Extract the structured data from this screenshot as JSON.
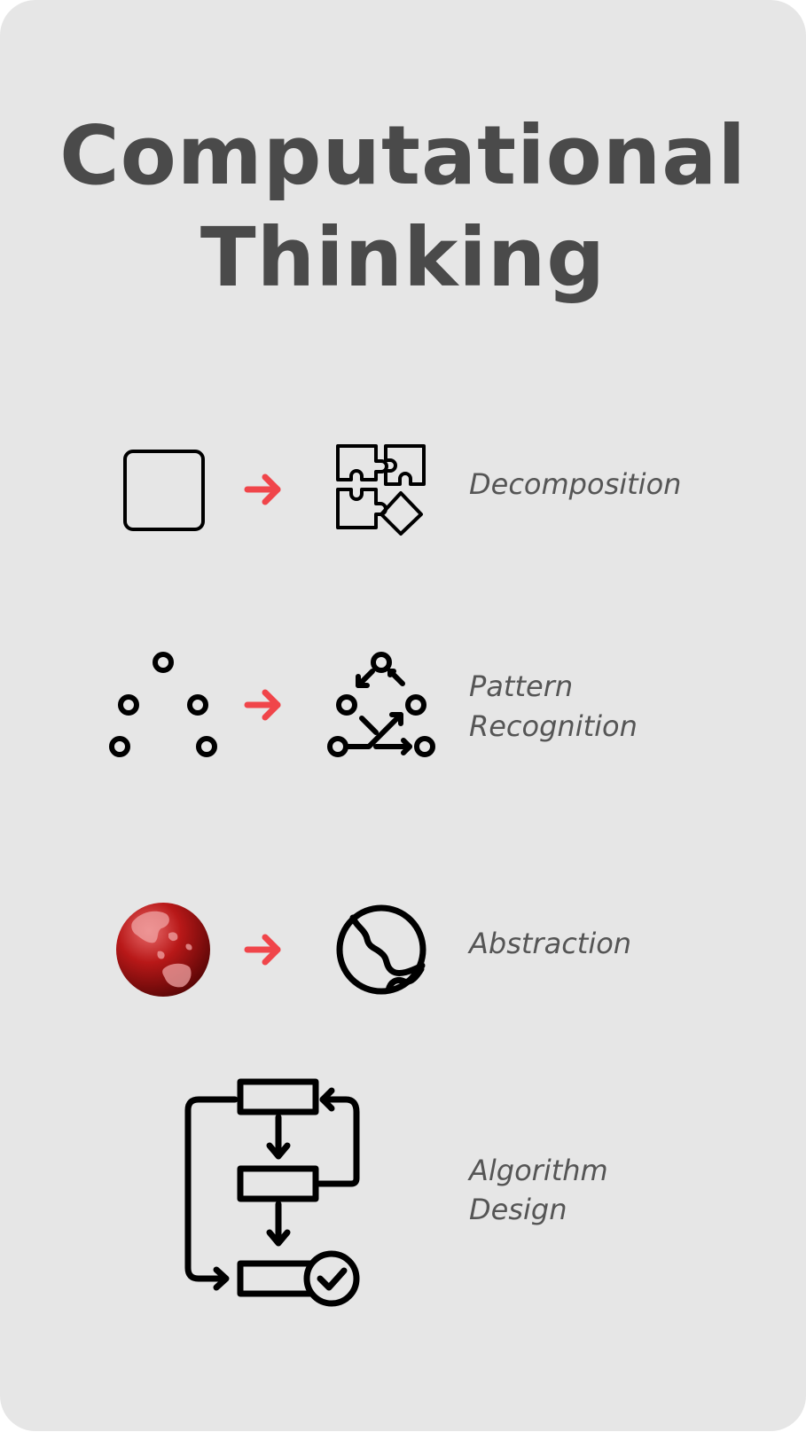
{
  "title": {
    "line1": "Computational",
    "line2": "Thinking"
  },
  "steps": [
    {
      "label": "Decomposition",
      "before_icon": "square-icon",
      "after_icon": "puzzle-pieces-icon"
    },
    {
      "label_line1": "Pattern",
      "label_line2": "Recognition",
      "before_icon": "scattered-dots-icon",
      "after_icon": "connected-dots-icon"
    },
    {
      "label": "Abstraction",
      "before_icon": "red-globe-icon",
      "after_icon": "globe-outline-icon"
    },
    {
      "label_line1": "Algorithm",
      "label_line2": "Design",
      "icon": "flowchart-icon"
    }
  ],
  "colors": {
    "background": "#e6e6e6",
    "title": "#4a4a4a",
    "label": "#555555",
    "arrow": "#f0454a",
    "icon": "#000000",
    "globe": "#b01818"
  }
}
